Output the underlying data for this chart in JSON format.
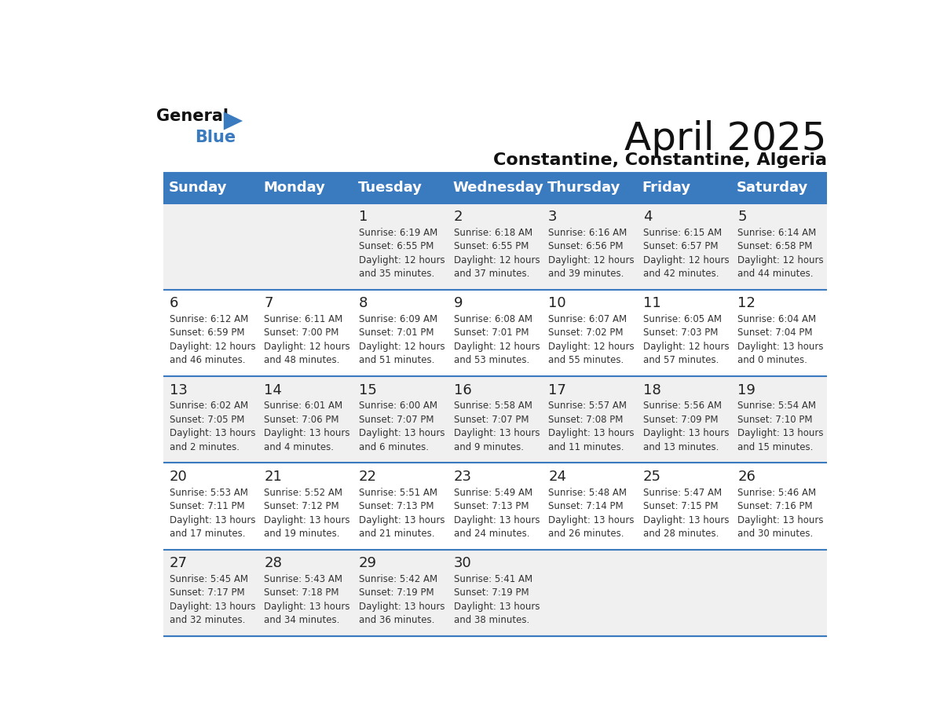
{
  "title": "April 2025",
  "subtitle": "Constantine, Constantine, Algeria",
  "header_bg": "#3a7abf",
  "header_text": "#ffffff",
  "cell_bg_light": "#f0f0f0",
  "cell_bg_white": "#ffffff",
  "border_color": "#3a7abf",
  "day_names": [
    "Sunday",
    "Monday",
    "Tuesday",
    "Wednesday",
    "Thursday",
    "Friday",
    "Saturday"
  ],
  "weeks": [
    [
      {
        "day": "",
        "info": ""
      },
      {
        "day": "",
        "info": ""
      },
      {
        "day": "1",
        "info": "Sunrise: 6:19 AM\nSunset: 6:55 PM\nDaylight: 12 hours\nand 35 minutes."
      },
      {
        "day": "2",
        "info": "Sunrise: 6:18 AM\nSunset: 6:55 PM\nDaylight: 12 hours\nand 37 minutes."
      },
      {
        "day": "3",
        "info": "Sunrise: 6:16 AM\nSunset: 6:56 PM\nDaylight: 12 hours\nand 39 minutes."
      },
      {
        "day": "4",
        "info": "Sunrise: 6:15 AM\nSunset: 6:57 PM\nDaylight: 12 hours\nand 42 minutes."
      },
      {
        "day": "5",
        "info": "Sunrise: 6:14 AM\nSunset: 6:58 PM\nDaylight: 12 hours\nand 44 minutes."
      }
    ],
    [
      {
        "day": "6",
        "info": "Sunrise: 6:12 AM\nSunset: 6:59 PM\nDaylight: 12 hours\nand 46 minutes."
      },
      {
        "day": "7",
        "info": "Sunrise: 6:11 AM\nSunset: 7:00 PM\nDaylight: 12 hours\nand 48 minutes."
      },
      {
        "day": "8",
        "info": "Sunrise: 6:09 AM\nSunset: 7:01 PM\nDaylight: 12 hours\nand 51 minutes."
      },
      {
        "day": "9",
        "info": "Sunrise: 6:08 AM\nSunset: 7:01 PM\nDaylight: 12 hours\nand 53 minutes."
      },
      {
        "day": "10",
        "info": "Sunrise: 6:07 AM\nSunset: 7:02 PM\nDaylight: 12 hours\nand 55 minutes."
      },
      {
        "day": "11",
        "info": "Sunrise: 6:05 AM\nSunset: 7:03 PM\nDaylight: 12 hours\nand 57 minutes."
      },
      {
        "day": "12",
        "info": "Sunrise: 6:04 AM\nSunset: 7:04 PM\nDaylight: 13 hours\nand 0 minutes."
      }
    ],
    [
      {
        "day": "13",
        "info": "Sunrise: 6:02 AM\nSunset: 7:05 PM\nDaylight: 13 hours\nand 2 minutes."
      },
      {
        "day": "14",
        "info": "Sunrise: 6:01 AM\nSunset: 7:06 PM\nDaylight: 13 hours\nand 4 minutes."
      },
      {
        "day": "15",
        "info": "Sunrise: 6:00 AM\nSunset: 7:07 PM\nDaylight: 13 hours\nand 6 minutes."
      },
      {
        "day": "16",
        "info": "Sunrise: 5:58 AM\nSunset: 7:07 PM\nDaylight: 13 hours\nand 9 minutes."
      },
      {
        "day": "17",
        "info": "Sunrise: 5:57 AM\nSunset: 7:08 PM\nDaylight: 13 hours\nand 11 minutes."
      },
      {
        "day": "18",
        "info": "Sunrise: 5:56 AM\nSunset: 7:09 PM\nDaylight: 13 hours\nand 13 minutes."
      },
      {
        "day": "19",
        "info": "Sunrise: 5:54 AM\nSunset: 7:10 PM\nDaylight: 13 hours\nand 15 minutes."
      }
    ],
    [
      {
        "day": "20",
        "info": "Sunrise: 5:53 AM\nSunset: 7:11 PM\nDaylight: 13 hours\nand 17 minutes."
      },
      {
        "day": "21",
        "info": "Sunrise: 5:52 AM\nSunset: 7:12 PM\nDaylight: 13 hours\nand 19 minutes."
      },
      {
        "day": "22",
        "info": "Sunrise: 5:51 AM\nSunset: 7:13 PM\nDaylight: 13 hours\nand 21 minutes."
      },
      {
        "day": "23",
        "info": "Sunrise: 5:49 AM\nSunset: 7:13 PM\nDaylight: 13 hours\nand 24 minutes."
      },
      {
        "day": "24",
        "info": "Sunrise: 5:48 AM\nSunset: 7:14 PM\nDaylight: 13 hours\nand 26 minutes."
      },
      {
        "day": "25",
        "info": "Sunrise: 5:47 AM\nSunset: 7:15 PM\nDaylight: 13 hours\nand 28 minutes."
      },
      {
        "day": "26",
        "info": "Sunrise: 5:46 AM\nSunset: 7:16 PM\nDaylight: 13 hours\nand 30 minutes."
      }
    ],
    [
      {
        "day": "27",
        "info": "Sunrise: 5:45 AM\nSunset: 7:17 PM\nDaylight: 13 hours\nand 32 minutes."
      },
      {
        "day": "28",
        "info": "Sunrise: 5:43 AM\nSunset: 7:18 PM\nDaylight: 13 hours\nand 34 minutes."
      },
      {
        "day": "29",
        "info": "Sunrise: 5:42 AM\nSunset: 7:19 PM\nDaylight: 13 hours\nand 36 minutes."
      },
      {
        "day": "30",
        "info": "Sunrise: 5:41 AM\nSunset: 7:19 PM\nDaylight: 13 hours\nand 38 minutes."
      },
      {
        "day": "",
        "info": ""
      },
      {
        "day": "",
        "info": ""
      },
      {
        "day": "",
        "info": ""
      }
    ]
  ],
  "logo_text_general": "General",
  "logo_text_blue": "Blue",
  "logo_arrow_color": "#3a7abf",
  "title_fontsize": 36,
  "subtitle_fontsize": 16,
  "header_fontsize": 13,
  "day_num_fontsize": 13,
  "info_fontsize": 8.5
}
